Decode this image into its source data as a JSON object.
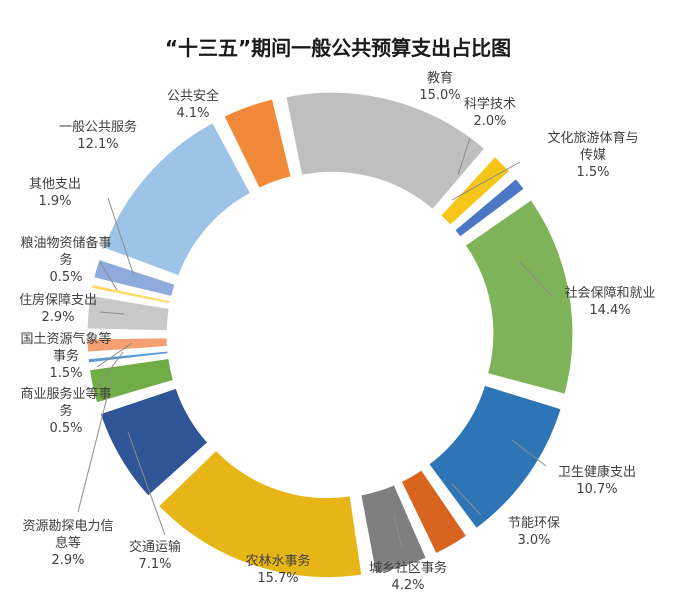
{
  "chart_data": {
    "type": "pie",
    "variant": "exploded-doughnut",
    "title": "“十三五”期间一般公共预算支出占比图",
    "legend": "none",
    "slices": [
      {
        "name": "教育",
        "value": 15.0,
        "label_lines": [
          "教育",
          "15.0%"
        ],
        "color": "#bfbfbf"
      },
      {
        "name": "科学技术",
        "value": 2.0,
        "label_lines": [
          "科学技术",
          "2.0%"
        ],
        "color": "#f5c518"
      },
      {
        "name": "文化旅游体育与传媒",
        "value": 1.5,
        "label_lines": [
          "文化旅游体育与",
          "传媒",
          "1.5%"
        ],
        "color": "#4a78c4"
      },
      {
        "name": "社会保障和就业",
        "value": 14.4,
        "label_lines": [
          "社会保障和就业",
          "14.4%"
        ],
        "color": "#7fb35a"
      },
      {
        "name": "卫生健康支出",
        "value": 10.7,
        "label_lines": [
          "卫生健康支出",
          "10.7%"
        ],
        "color": "#2e75b6"
      },
      {
        "name": "节能环保",
        "value": 3.0,
        "label_lines": [
          "节能环保",
          "3.0%"
        ],
        "color": "#d86420"
      },
      {
        "name": "城乡社区事务",
        "value": 4.2,
        "label_lines": [
          "城乡社区事务",
          "4.2%"
        ],
        "color": "#7f7f7f"
      },
      {
        "name": "农林水事务",
        "value": 15.7,
        "label_lines": [
          "农林水事务",
          "15.7%"
        ],
        "color": "#e8b517"
      },
      {
        "name": "交通运输",
        "value": 7.1,
        "label_lines": [
          "交通运输",
          "7.1%"
        ],
        "color": "#2f5597"
      },
      {
        "name": "资源勘探电力信息等",
        "value": 2.9,
        "label_lines": [
          "资源勘探电力信",
          "息等",
          "2.9%"
        ],
        "color": "#70ad47"
      },
      {
        "name": "商业服务业等事务",
        "value": 0.5,
        "label_lines": [
          "商业服务业等事",
          "务",
          "0.5%"
        ],
        "color": "#5b9bd5"
      },
      {
        "name": "国土资源气象等事务",
        "value": 1.5,
        "label_lines": [
          "国土资源气象等",
          "事务",
          "1.5%"
        ],
        "color": "#f4a070"
      },
      {
        "name": "住房保障支出",
        "value": 2.9,
        "label_lines": [
          "住房保障支出",
          "2.9%"
        ],
        "color": "#c9c9c9"
      },
      {
        "name": "粮油物资储备事务",
        "value": 0.5,
        "label_lines": [
          "粮油物资储备事",
          "务",
          "0.5%"
        ],
        "color": "#ffd966"
      },
      {
        "name": "其他支出",
        "value": 1.9,
        "label_lines": [
          "其他支出",
          "1.9%"
        ],
        "color": "#8faadc"
      },
      {
        "name": "一般公共服务",
        "value": 12.1,
        "label_lines": [
          "一般公共服务",
          "12.1%"
        ],
        "color": "#9dc3e6"
      },
      {
        "name": "公共安全",
        "value": 4.1,
        "label_lines": [
          "公共安全",
          "4.1%"
        ],
        "color": "#f08a3a"
      }
    ]
  }
}
